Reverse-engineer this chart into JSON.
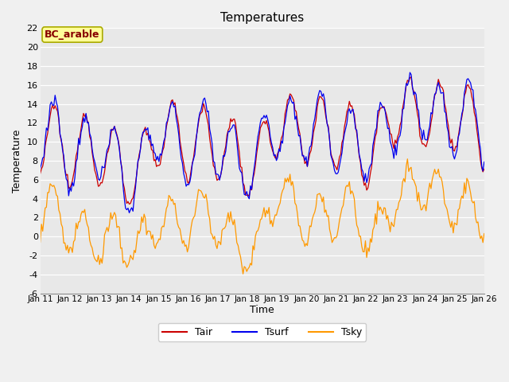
{
  "title": "Temperatures",
  "xlabel": "Time",
  "ylabel": "Temperature",
  "annotation": "BC_arable",
  "ylim": [
    -6,
    22
  ],
  "yticks": [
    -6,
    -4,
    -2,
    0,
    2,
    4,
    6,
    8,
    10,
    12,
    14,
    16,
    18,
    20,
    22
  ],
  "xtick_labels": [
    "Jan 11",
    "Jan 12",
    "Jan 13",
    "Jan 14",
    "Jan 15",
    "Jan 16",
    "Jan 17",
    "Jan 18",
    "Jan 19",
    "Jan 20",
    "Jan 21",
    "Jan 22",
    "Jan 23",
    "Jan 24",
    "Jan 25",
    "Jan 26"
  ],
  "tair_color": "#cc0000",
  "tsurf_color": "#0000ee",
  "tsky_color": "#ff9900",
  "legend_labels": [
    "Tair",
    "Tsurf",
    "Tsky"
  ],
  "bg_color": "#e8e8e8",
  "grid_color": "#ffffff",
  "annotation_bg": "#ffff99",
  "annotation_fg": "#880000",
  "fig_bg": "#f0f0f0"
}
